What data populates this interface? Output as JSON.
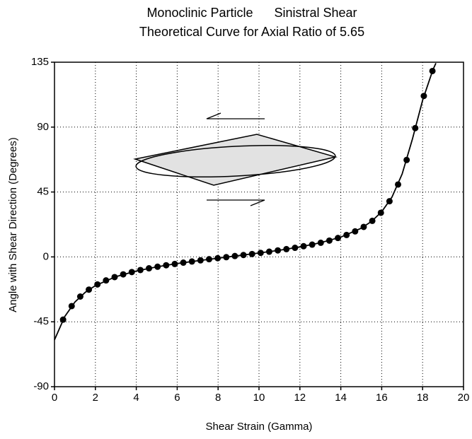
{
  "chart_data": {
    "type": "scatter",
    "title": "Monoclinic Particle      Sinistral Shear",
    "subtitle": "Theoretical Curve for Axial Ratio of 5.65",
    "x_label": "Shear Strain (Gamma)",
    "y_label": "Angle with Shear Direction (Degrees)",
    "xlim": [
      0,
      20
    ],
    "ylim": [
      -90,
      135
    ],
    "xticks": [
      0,
      2,
      4,
      6,
      8,
      10,
      12,
      14,
      16,
      18,
      20
    ],
    "yticks": [
      -90,
      -45,
      0,
      45,
      90,
      135
    ],
    "grid": true,
    "series": [
      {
        "type": "scatter",
        "color": "#000000",
        "x": [
          0.42,
          0.84,
          1.26,
          1.68,
          2.1,
          2.52,
          2.94,
          3.36,
          3.78,
          4.2,
          4.62,
          5.04,
          5.46,
          5.88,
          6.3,
          6.72,
          7.14,
          7.56,
          7.98,
          8.4,
          8.82,
          9.24,
          9.66,
          10.08,
          10.5,
          10.92,
          11.34,
          11.76,
          12.18,
          12.6,
          13.02,
          13.44,
          13.86,
          14.28,
          14.7,
          15.12,
          15.54,
          15.96,
          16.38,
          16.8,
          17.22,
          17.64,
          18.06,
          18.48
        ],
        "values": [
          -43.5,
          -34.1,
          -27.5,
          -22.7,
          -19.1,
          -16.3,
          -14.0,
          -12.1,
          -10.5,
          -9.1,
          -7.9,
          -6.8,
          -5.8,
          -4.9,
          -4.0,
          -3.2,
          -2.4,
          -1.6,
          -0.9,
          -0.2,
          0.6,
          1.3,
          2.0,
          2.8,
          3.6,
          4.5,
          5.4,
          6.3,
          7.4,
          8.5,
          9.8,
          11.3,
          13.1,
          15.2,
          17.7,
          20.8,
          25.0,
          30.6,
          38.6,
          50.2,
          67.2,
          89.3,
          111.6,
          128.9
        ]
      },
      {
        "type": "line",
        "color": "#000000",
        "x": [
          0,
          0.5,
          1,
          1.5,
          2,
          3,
          4,
          5,
          6,
          7,
          8,
          9,
          10,
          11,
          12,
          13,
          14,
          15,
          15.5,
          16,
          16.5,
          17,
          17.5,
          18,
          18.5,
          18.65
        ],
        "values": [
          -57.5,
          -41.4,
          -31.3,
          -24.6,
          -19.9,
          -13.7,
          -9.8,
          -6.9,
          -4.6,
          -2.7,
          -0.9,
          0.9,
          2.7,
          4.6,
          6.9,
          9.8,
          13.7,
          19.9,
          24.6,
          31.3,
          41.4,
          57.5,
          81.6,
          108.6,
          129.6,
          134.3
        ]
      }
    ]
  }
}
